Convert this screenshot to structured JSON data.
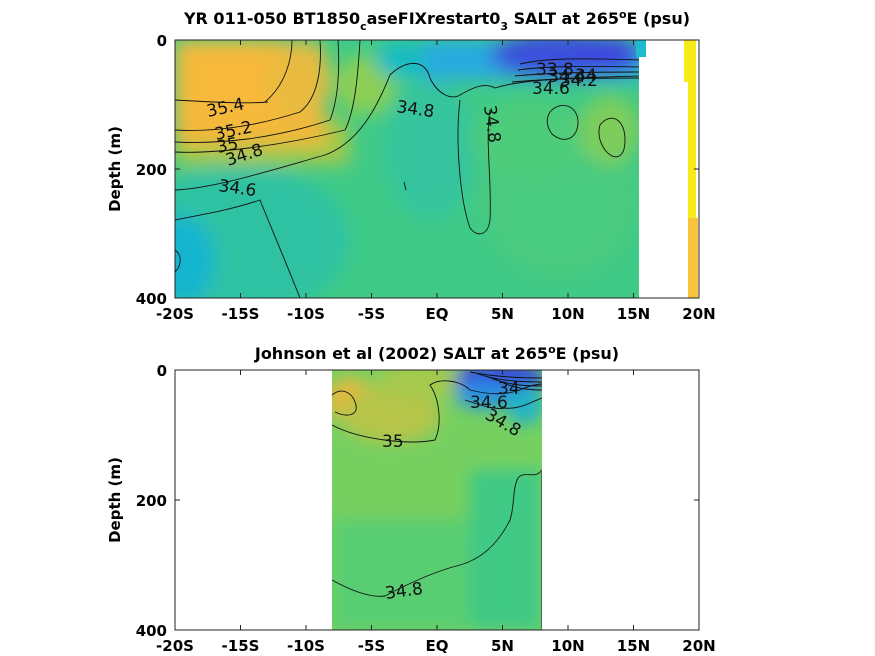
{
  "chart_data": [
    {
      "type": "heatmap",
      "title": {
        "pre": "YR 011-050 BT1850",
        "sub1": "c",
        "mid": "aseFIXrestart0",
        "sub2": "3",
        "post": " SALT at 265",
        "sup": "o",
        "tail": "E (psu)"
      },
      "ylabel": "Depth (m)",
      "x_ticks": [
        "-20S",
        "-15S",
        "-10S",
        "-5S",
        "EQ",
        "5N",
        "10N",
        "15N",
        "20N"
      ],
      "y_ticks": [
        "0",
        "200",
        "400"
      ],
      "xlim": [
        -20,
        20
      ],
      "ylim": [
        0,
        400
      ],
      "colormap": [
        "#3d3ddb",
        "#2e7de8",
        "#14b6d6",
        "#3cc98a",
        "#6ccf5f",
        "#b2c545",
        "#f5b93a",
        "#f7e81a"
      ],
      "value_range": [
        33.8,
        35.6
      ],
      "contour_labels": [
        "35.4",
        "35.2",
        "35",
        "34.8",
        "34.6",
        "34.8",
        "34.8",
        "33.8",
        "34",
        "34.2",
        "34.4",
        "34.6"
      ]
    },
    {
      "type": "heatmap",
      "title": {
        "pre": "Johnson et al (2002) SALT at 265",
        "sup": "o",
        "tail": "E (psu)"
      },
      "ylabel": "Depth (m)",
      "x_ticks": [
        "-20S",
        "-15S",
        "-10S",
        "-5S",
        "EQ",
        "5N",
        "10N",
        "15N",
        "20N"
      ],
      "y_ticks": [
        "0",
        "200",
        "400"
      ],
      "xlim": [
        -20,
        20
      ],
      "ylim": [
        0,
        400
      ],
      "data_extent_x": [
        -8,
        8
      ],
      "contour_labels": [
        "35",
        "34.8",
        "34.6",
        "34",
        "34.8"
      ]
    }
  ]
}
